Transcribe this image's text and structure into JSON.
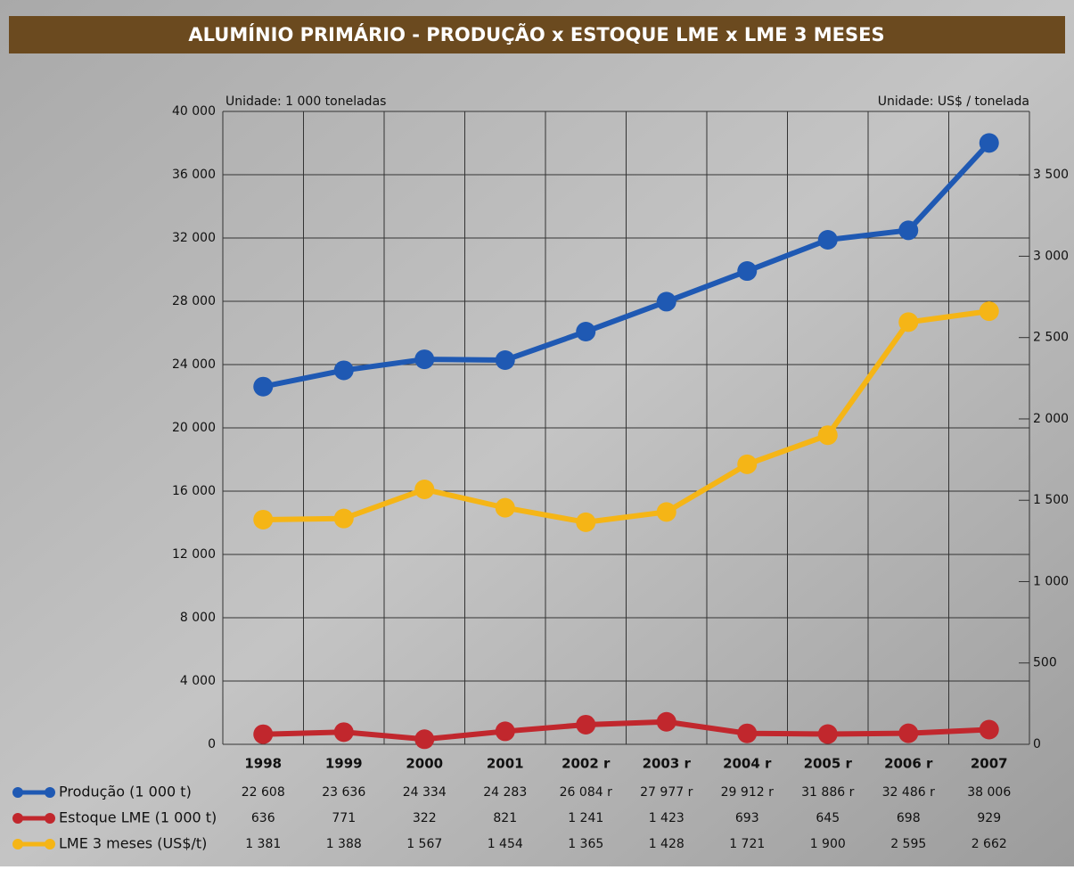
{
  "chart_data": {
    "type": "line",
    "title": "ALUMÍNIO PRIMÁRIO - PRODUÇÃO x ESTOQUE LME x LME 3 MESES",
    "y_unit": "Unidade: 1 000 toneladas",
    "y2_unit": "Unidade: US$ / tonelada",
    "categories": [
      "1998",
      "1999",
      "2000",
      "2001",
      "2002 r",
      "2003 r",
      "2004 r",
      "2005 r",
      "2006 r",
      "2007"
    ],
    "ylim": [
      0,
      40000
    ],
    "yticks": [
      0,
      {
        "value": 4000,
        "label": "4 000"
      },
      {
        "value": 8000,
        "label": "8 000"
      },
      {
        "value": 12000,
        "label": "12 000"
      },
      {
        "value": 16000,
        "label": "16 000"
      },
      {
        "value": 20000,
        "label": "20 000"
      },
      {
        "value": 24000,
        "label": "24 000"
      },
      {
        "value": 28000,
        "label": "28 000"
      },
      {
        "value": 32000,
        "label": "32 000"
      },
      {
        "value": 36000,
        "label": "36 000"
      },
      {
        "value": 40000,
        "label": "40 000"
      }
    ],
    "y2lim": [
      0,
      3890
    ],
    "y2ticks": [
      0,
      500,
      {
        "value": 1000,
        "label": "1 000"
      },
      {
        "value": 1500,
        "label": "1 500"
      },
      {
        "value": 2000,
        "label": "2 000"
      },
      {
        "value": 2500,
        "label": "2 500"
      },
      {
        "value": 3000,
        "label": "3 000"
      },
      {
        "value": 3500,
        "label": "3 500"
      }
    ],
    "grid": true,
    "series": [
      {
        "name": "Produção (1 000 t)",
        "color": "#1f59b3",
        "values": [
          22608,
          23636,
          24334,
          24283,
          26084,
          27977,
          29912,
          31886,
          32486,
          38006
        ],
        "value_labels": [
          "22 608",
          "23 636",
          "24 334",
          "24 283",
          "26 084 r",
          "27 977 r",
          "29 912 r",
          "31 886 r",
          "32 486 r",
          "38 006"
        ]
      },
      {
        "name": "Estoque LME (1 000 t)",
        "color": "#c1272d",
        "values": [
          636,
          771,
          322,
          821,
          1241,
          1423,
          693,
          645,
          698,
          929
        ],
        "value_labels": [
          "636",
          "771",
          "322",
          "821",
          "1 241",
          "1 423",
          "693",
          "645",
          "698",
          "929"
        ]
      },
      {
        "name": "LME 3 meses (US$/t)",
        "color": "#f5b516",
        "axis": "y2",
        "values": [
          1381,
          1388,
          1567,
          1454,
          1365,
          1428,
          1721,
          1900,
          2595,
          2662
        ],
        "value_labels": [
          "1 381",
          "1 388",
          "1 567",
          "1 454",
          "1 365",
          "1 428",
          "1 721",
          "1 900",
          "2 595",
          "2 662"
        ]
      }
    ]
  }
}
